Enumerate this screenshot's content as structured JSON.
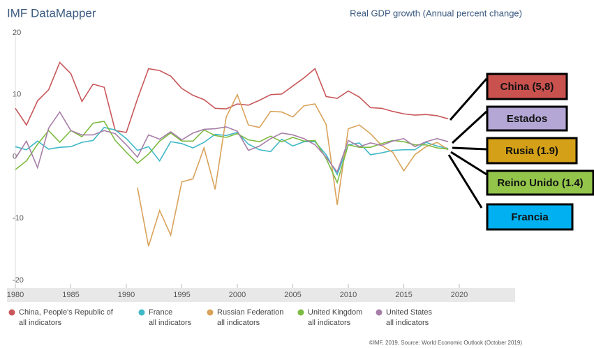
{
  "chart_data": {
    "type": "line",
    "brand": "IMF DataMapper",
    "title": "Real GDP growth (Annual percent change)",
    "source": "©IMF, 2019, Source: World Economic Outlook (October 2019)",
    "legend_sublabel": "all indicators",
    "x": [
      1980,
      1981,
      1982,
      1983,
      1984,
      1985,
      1986,
      1987,
      1988,
      1989,
      1990,
      1991,
      1992,
      1993,
      1994,
      1995,
      1996,
      1997,
      1998,
      1999,
      2000,
      2001,
      2002,
      2003,
      2004,
      2005,
      2006,
      2007,
      2008,
      2009,
      2010,
      2011,
      2012,
      2013,
      2014,
      2015,
      2016,
      2017,
      2018,
      2019
    ],
    "xlim": [
      1980,
      2025
    ],
    "xticks": [
      1980,
      1985,
      1990,
      1995,
      2000,
      2005,
      2010,
      2015,
      2020
    ],
    "ylim": [
      -20,
      20
    ],
    "yticks": [
      -20,
      -10,
      0,
      10,
      20
    ],
    "grid": false,
    "series": [
      {
        "name": "China, People's Republic of",
        "color": "#c8575a",
        "values": [
          7.8,
          5.1,
          9.0,
          10.8,
          15.2,
          13.4,
          8.9,
          11.7,
          11.2,
          4.2,
          3.9,
          9.3,
          14.2,
          13.9,
          13.0,
          11.0,
          9.9,
          9.2,
          7.8,
          7.7,
          8.5,
          8.3,
          9.1,
          10.0,
          10.1,
          11.4,
          12.7,
          14.2,
          9.7,
          9.4,
          10.6,
          9.6,
          7.9,
          7.8,
          7.3,
          6.9,
          6.7,
          6.8,
          6.6,
          6.1
        ]
      },
      {
        "name": "France",
        "color": "#3fb8c8",
        "values": [
          1.6,
          1.1,
          2.5,
          1.2,
          1.5,
          1.6,
          2.3,
          2.6,
          4.7,
          4.3,
          2.9,
          1.0,
          1.6,
          -0.7,
          2.4,
          2.1,
          1.4,
          2.3,
          3.6,
          3.4,
          3.9,
          2.0,
          1.1,
          0.8,
          2.8,
          1.7,
          2.4,
          2.4,
          0.3,
          -2.9,
          1.9,
          2.2,
          0.3,
          0.6,
          1.0,
          1.1,
          1.1,
          2.3,
          1.7,
          1.3
        ]
      },
      {
        "name": "Russian Federation",
        "color": "#d9a25a",
        "values": [
          null,
          null,
          null,
          null,
          null,
          null,
          null,
          null,
          null,
          null,
          null,
          -5.0,
          -14.5,
          -8.7,
          -12.7,
          -4.1,
          -3.6,
          1.4,
          -5.3,
          6.4,
          10.0,
          5.1,
          4.7,
          7.3,
          7.2,
          6.4,
          8.2,
          8.5,
          5.2,
          -7.8,
          4.5,
          5.1,
          3.7,
          1.8,
          0.7,
          -2.3,
          0.3,
          1.6,
          2.3,
          1.1
        ]
      },
      {
        "name": "United Kingdom",
        "color": "#7dbb42",
        "values": [
          -2.1,
          -0.7,
          2.0,
          4.2,
          2.3,
          4.2,
          3.2,
          5.4,
          5.7,
          2.6,
          0.7,
          -1.1,
          0.4,
          2.5,
          3.8,
          2.5,
          2.5,
          4.3,
          3.4,
          3.1,
          3.7,
          2.7,
          2.4,
          3.3,
          2.4,
          3.1,
          2.5,
          2.6,
          -0.3,
          -4.2,
          1.9,
          1.5,
          1.5,
          2.1,
          2.6,
          2.4,
          1.9,
          1.9,
          1.4,
          1.2
        ]
      },
      {
        "name": "United States",
        "color": "#a77ea8",
        "values": [
          -0.3,
          2.5,
          -1.8,
          4.6,
          7.2,
          4.2,
          3.5,
          3.5,
          4.2,
          3.7,
          1.9,
          -0.1,
          3.5,
          2.8,
          4.0,
          2.7,
          3.8,
          4.4,
          4.5,
          4.8,
          4.1,
          1.0,
          1.7,
          2.9,
          3.8,
          3.5,
          2.9,
          1.9,
          -0.1,
          -2.5,
          2.6,
          1.6,
          2.2,
          1.8,
          2.5,
          2.9,
          1.6,
          2.4,
          2.9,
          2.4
        ]
      }
    ],
    "annotations": [
      {
        "text": "China (5,8)",
        "color": "#c9524e"
      },
      {
        "text": "Estados",
        "color": "#b4a7d6"
      },
      {
        "text": "Rusia (1.9)",
        "color": "#d4a017"
      },
      {
        "text": "Reino Unido (1.4)",
        "color": "#93c54b"
      },
      {
        "text": "Francia",
        "color": "#00b0f0"
      }
    ]
  }
}
